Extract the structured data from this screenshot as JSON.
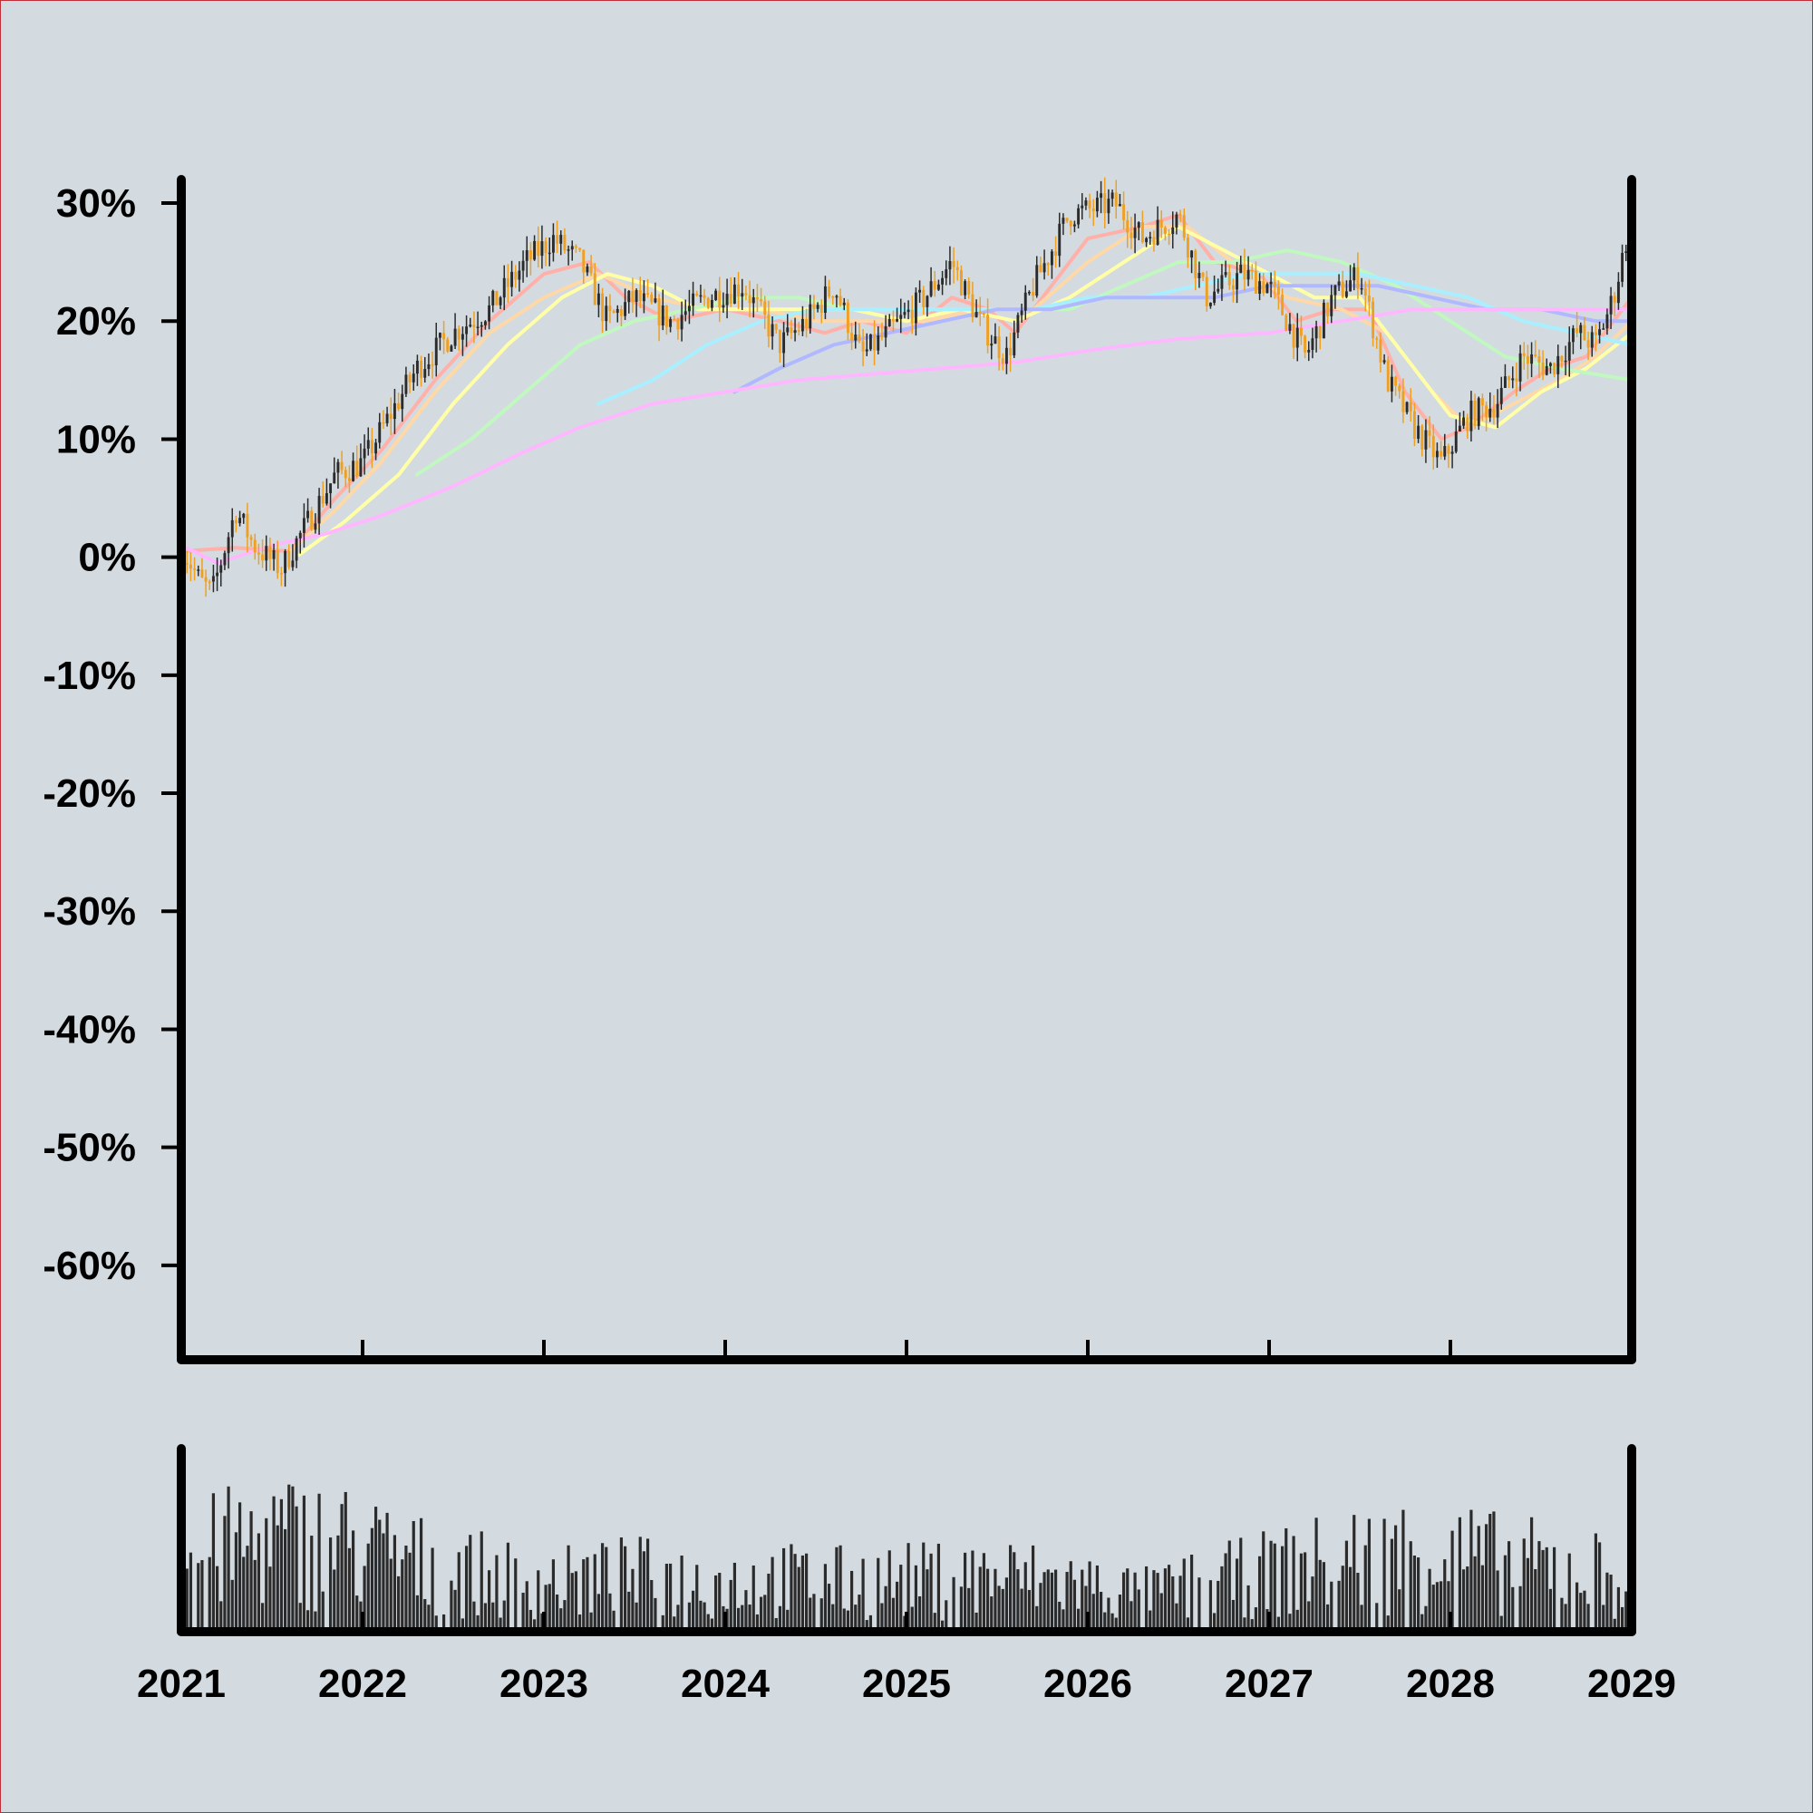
{
  "colors": {
    "background": "#d3dbe0",
    "frame": "#c0303a",
    "axis": "#000000",
    "candle_up": "#2b2b2b",
    "candle_down": "#f0a020",
    "volume": "#2b2b2b"
  },
  "chart_data": {
    "type": "candlestick",
    "title": "",
    "xlabel": "",
    "ylabel": "",
    "x_tick_labels": [
      "2021",
      "2022",
      "2023",
      "2024",
      "2025",
      "2026",
      "2027",
      "2028",
      "2029"
    ],
    "y_tick_labels": [
      "30%",
      "20%",
      "10%",
      "0%",
      "-10%",
      "-20%",
      "-30%",
      "-40%",
      "-50%",
      "-60%"
    ],
    "y_ticks": [
      30,
      20,
      10,
      0,
      -10,
      -20,
      -30,
      -40,
      -50,
      -60
    ],
    "xlim": [
      2021.0,
      2029.0
    ],
    "ylim": [
      -68,
      32
    ],
    "grid": false,
    "legend": "none",
    "price_path": [
      [
        2021.0,
        1
      ],
      [
        2021.1,
        -2
      ],
      [
        2021.17,
        -3
      ],
      [
        2021.3,
        4
      ],
      [
        2021.4,
        1
      ],
      [
        2021.55,
        -1
      ],
      [
        2021.7,
        3
      ],
      [
        2021.85,
        7
      ],
      [
        2022.0,
        8
      ],
      [
        2022.15,
        12
      ],
      [
        2022.3,
        16
      ],
      [
        2022.5,
        19
      ],
      [
        2022.7,
        21
      ],
      [
        2022.9,
        25
      ],
      [
        2023.05,
        27
      ],
      [
        2023.2,
        25
      ],
      [
        2023.35,
        20
      ],
      [
        2023.5,
        22
      ],
      [
        2023.7,
        20
      ],
      [
        2023.9,
        22
      ],
      [
        2024.1,
        23
      ],
      [
        2024.3,
        18
      ],
      [
        2024.45,
        20
      ],
      [
        2024.6,
        23
      ],
      [
        2024.75,
        17
      ],
      [
        2024.9,
        19
      ],
      [
        2025.1,
        22
      ],
      [
        2025.25,
        25
      ],
      [
        2025.4,
        20
      ],
      [
        2025.55,
        17
      ],
      [
        2025.7,
        23
      ],
      [
        2025.9,
        29
      ],
      [
        2026.15,
        30
      ],
      [
        2026.3,
        27
      ],
      [
        2026.5,
        29
      ],
      [
        2026.65,
        22
      ],
      [
        2026.85,
        24
      ],
      [
        2027.0,
        23
      ],
      [
        2027.2,
        17
      ],
      [
        2027.35,
        22
      ],
      [
        2027.5,
        24
      ],
      [
        2027.65,
        15
      ],
      [
        2027.8,
        11
      ],
      [
        2027.95,
        8
      ],
      [
        2028.1,
        12
      ],
      [
        2028.25,
        13
      ],
      [
        2028.4,
        17
      ],
      [
        2028.55,
        16
      ],
      [
        2028.7,
        19
      ],
      [
        2028.8,
        18
      ],
      [
        2028.9,
        22
      ],
      [
        2029.0,
        29
      ]
    ],
    "moving_averages": [
      {
        "color": "#ffb0a8",
        "values": [
          [
            2021.0,
            0.5
          ],
          [
            2021.3,
            0.8
          ],
          [
            2021.6,
            0.5
          ],
          [
            2021.85,
            5
          ],
          [
            2022.1,
            9
          ],
          [
            2022.4,
            15
          ],
          [
            2022.7,
            20
          ],
          [
            2023.0,
            24
          ],
          [
            2023.25,
            25
          ],
          [
            2023.45,
            22
          ],
          [
            2023.7,
            20
          ],
          [
            2024.0,
            21
          ],
          [
            2024.3,
            20
          ],
          [
            2024.55,
            19
          ],
          [
            2024.75,
            20
          ],
          [
            2025.0,
            19
          ],
          [
            2025.25,
            22
          ],
          [
            2025.45,
            21
          ],
          [
            2025.6,
            19
          ],
          [
            2025.8,
            23
          ],
          [
            2026.0,
            27
          ],
          [
            2026.3,
            28
          ],
          [
            2026.5,
            29
          ],
          [
            2026.7,
            25
          ],
          [
            2026.95,
            24
          ],
          [
            2027.15,
            20
          ],
          [
            2027.35,
            21
          ],
          [
            2027.55,
            21
          ],
          [
            2027.75,
            14
          ],
          [
            2027.95,
            10
          ],
          [
            2028.1,
            11
          ],
          [
            2028.35,
            14
          ],
          [
            2028.55,
            16
          ],
          [
            2028.75,
            17
          ],
          [
            2029.0,
            22
          ]
        ]
      },
      {
        "color": "#ffd8a8",
        "values": [
          [
            2021.6,
            0.5
          ],
          [
            2021.85,
            4
          ],
          [
            2022.1,
            8
          ],
          [
            2022.4,
            14
          ],
          [
            2022.7,
            19
          ],
          [
            2023.0,
            22
          ],
          [
            2023.3,
            24
          ],
          [
            2023.6,
            22
          ],
          [
            2023.9,
            21
          ],
          [
            2024.2,
            21
          ],
          [
            2024.5,
            20
          ],
          [
            2024.8,
            20
          ],
          [
            2025.1,
            20
          ],
          [
            2025.4,
            21
          ],
          [
            2025.7,
            21
          ],
          [
            2026.0,
            25
          ],
          [
            2026.3,
            28
          ],
          [
            2026.55,
            28
          ],
          [
            2026.8,
            25
          ],
          [
            2027.1,
            22
          ],
          [
            2027.4,
            21
          ],
          [
            2027.65,
            19
          ],
          [
            2027.9,
            14
          ],
          [
            2028.1,
            11
          ],
          [
            2028.35,
            13
          ],
          [
            2028.6,
            15
          ],
          [
            2028.8,
            17
          ],
          [
            2029.0,
            20
          ]
        ]
      },
      {
        "color": "#ffffa8",
        "values": [
          [
            2021.65,
            0.2
          ],
          [
            2021.9,
            3
          ],
          [
            2022.2,
            7
          ],
          [
            2022.5,
            13
          ],
          [
            2022.8,
            18
          ],
          [
            2023.1,
            22
          ],
          [
            2023.35,
            24
          ],
          [
            2023.6,
            23
          ],
          [
            2023.85,
            21
          ],
          [
            2024.1,
            21
          ],
          [
            2024.4,
            21
          ],
          [
            2024.7,
            21
          ],
          [
            2025.0,
            20
          ],
          [
            2025.3,
            21
          ],
          [
            2025.6,
            20
          ],
          [
            2025.9,
            22
          ],
          [
            2026.2,
            25
          ],
          [
            2026.5,
            28
          ],
          [
            2026.75,
            26
          ],
          [
            2027.0,
            24
          ],
          [
            2027.25,
            22
          ],
          [
            2027.5,
            22
          ],
          [
            2027.75,
            17
          ],
          [
            2028.0,
            12
          ],
          [
            2028.25,
            11
          ],
          [
            2028.5,
            14
          ],
          [
            2028.75,
            16
          ],
          [
            2029.0,
            19
          ]
        ]
      },
      {
        "color": "#c0f8c0",
        "values": [
          [
            2022.3,
            7
          ],
          [
            2022.6,
            10
          ],
          [
            2022.9,
            14
          ],
          [
            2023.2,
            18
          ],
          [
            2023.5,
            20
          ],
          [
            2023.8,
            21
          ],
          [
            2024.1,
            22
          ],
          [
            2024.4,
            22
          ],
          [
            2024.7,
            21
          ],
          [
            2025.0,
            21
          ],
          [
            2025.3,
            21
          ],
          [
            2025.6,
            21
          ],
          [
            2025.9,
            21
          ],
          [
            2026.2,
            23
          ],
          [
            2026.5,
            25
          ],
          [
            2026.8,
            25
          ],
          [
            2027.1,
            26
          ],
          [
            2027.4,
            25
          ],
          [
            2027.7,
            23
          ],
          [
            2028.0,
            20
          ],
          [
            2028.3,
            17
          ],
          [
            2028.6,
            16
          ],
          [
            2029.0,
            15
          ]
        ]
      },
      {
        "color": "#a8f0ff",
        "values": [
          [
            2023.3,
            13
          ],
          [
            2023.6,
            15
          ],
          [
            2023.9,
            18
          ],
          [
            2024.2,
            20
          ],
          [
            2024.5,
            21
          ],
          [
            2024.8,
            21
          ],
          [
            2025.1,
            21
          ],
          [
            2025.4,
            21
          ],
          [
            2025.7,
            21
          ],
          [
            2026.0,
            22
          ],
          [
            2026.3,
            22
          ],
          [
            2026.6,
            23
          ],
          [
            2026.9,
            24
          ],
          [
            2027.2,
            24
          ],
          [
            2027.5,
            24
          ],
          [
            2027.8,
            23
          ],
          [
            2028.1,
            22
          ],
          [
            2028.4,
            20
          ],
          [
            2028.7,
            19
          ],
          [
            2029.0,
            18
          ]
        ]
      },
      {
        "color": "#b0b8ff",
        "values": [
          [
            2024.05,
            14
          ],
          [
            2024.3,
            16
          ],
          [
            2024.6,
            18
          ],
          [
            2024.9,
            19
          ],
          [
            2025.2,
            20
          ],
          [
            2025.5,
            21
          ],
          [
            2025.8,
            21
          ],
          [
            2026.1,
            22
          ],
          [
            2026.4,
            22
          ],
          [
            2026.7,
            22
          ],
          [
            2027.0,
            23
          ],
          [
            2027.3,
            23
          ],
          [
            2027.6,
            23
          ],
          [
            2027.9,
            22
          ],
          [
            2028.2,
            21
          ],
          [
            2028.5,
            21
          ],
          [
            2028.8,
            20
          ],
          [
            2029.0,
            20
          ]
        ]
      },
      {
        "color": "#ffb8ff",
        "values": [
          [
            2021.0,
            1
          ],
          [
            2021.2,
            -0.5
          ],
          [
            2021.5,
            1
          ],
          [
            2021.8,
            2
          ],
          [
            2022.1,
            3.5
          ],
          [
            2022.5,
            6
          ],
          [
            2022.9,
            9
          ],
          [
            2023.2,
            11
          ],
          [
            2023.6,
            13
          ],
          [
            2024.0,
            14
          ],
          [
            2024.4,
            15
          ],
          [
            2024.8,
            15.5
          ],
          [
            2025.2,
            16
          ],
          [
            2025.6,
            16.5
          ],
          [
            2026.0,
            17.5
          ],
          [
            2026.5,
            18.5
          ],
          [
            2027.0,
            19
          ],
          [
            2027.4,
            20
          ],
          [
            2027.8,
            21
          ],
          [
            2028.2,
            21
          ],
          [
            2028.6,
            21
          ],
          [
            2029.0,
            21
          ]
        ]
      }
    ],
    "volume_profile": [
      [
        2021.0,
        60
      ],
      [
        2021.5,
        75
      ],
      [
        2021.9,
        70
      ],
      [
        2022.3,
        55
      ],
      [
        2022.7,
        45
      ],
      [
        2023.1,
        40
      ],
      [
        2023.5,
        45
      ],
      [
        2023.9,
        40
      ],
      [
        2024.3,
        42
      ],
      [
        2024.7,
        40
      ],
      [
        2025.1,
        42
      ],
      [
        2025.5,
        45
      ],
      [
        2025.9,
        40
      ],
      [
        2026.3,
        30
      ],
      [
        2026.7,
        40
      ],
      [
        2027.1,
        50
      ],
      [
        2027.5,
        60
      ],
      [
        2027.9,
        65
      ],
      [
        2028.3,
        55
      ],
      [
        2028.7,
        50
      ],
      [
        2029.0,
        45
      ]
    ]
  }
}
